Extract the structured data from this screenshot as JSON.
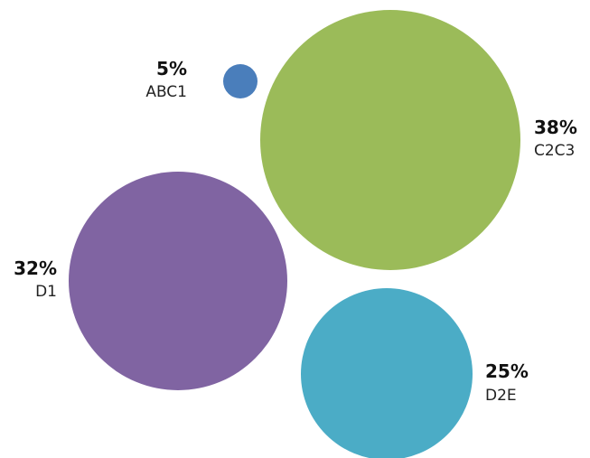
{
  "chart_data": {
    "type": "bubble",
    "title": "",
    "legend": "none",
    "grid": false,
    "series": [
      {
        "name": "ABC1",
        "value": 5,
        "label": "5%",
        "color": "#4A7EBB"
      },
      {
        "name": "C2C3",
        "value": 38,
        "label": "38%",
        "color": "#9BBB59"
      },
      {
        "name": "D1",
        "value": 32,
        "label": "32%",
        "color": "#8064A2"
      },
      {
        "name": "D2E",
        "value": 25,
        "label": "25%",
        "color": "#4BACC6"
      }
    ]
  }
}
